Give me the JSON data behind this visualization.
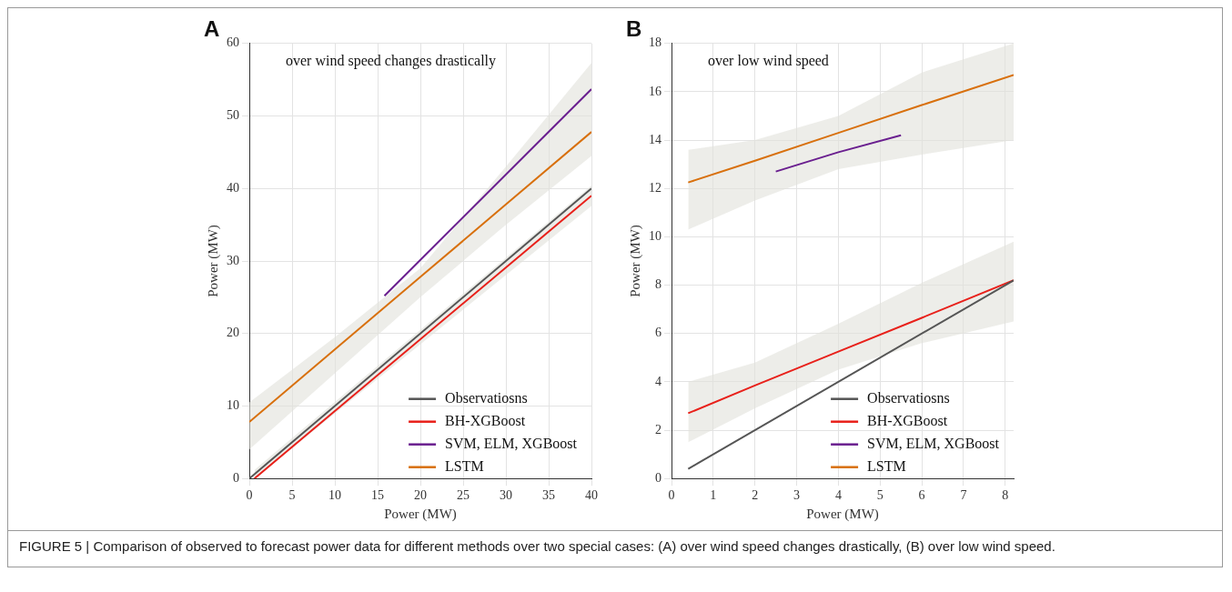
{
  "chart_data": [
    {
      "type": "line",
      "title": "A",
      "xlabel": "Power (MW)",
      "ylabel": "Power (MW)",
      "xlim": [
        0,
        40
      ],
      "ylim": [
        0,
        60
      ],
      "xticks": [
        0,
        5,
        10,
        15,
        20,
        25,
        30,
        35,
        40
      ],
      "yticks": [
        0,
        10,
        20,
        30,
        40,
        50,
        60
      ],
      "grid": true,
      "legend": "bottom right",
      "annotations": [
        "over wind speed changes drastically",
        "FIGURE 5 | Comparison of observed to forecast power data for different methods over two special cases: (A) over wind speed changes drastically, (B) over low wind speed."
      ],
      "series": [
        {
          "name": "Observatiosns",
          "color": "#555555",
          "x": [
            0,
            40
          ],
          "values": [
            0,
            40
          ]
        },
        {
          "name": "BH-XGBoost",
          "color": "#e8201a",
          "x": [
            0.6,
            40
          ],
          "values": [
            0,
            39
          ],
          "lower": [
            0,
            37.6
          ],
          "upper": [
            1.2,
            40.4
          ]
        },
        {
          "name": "SVM, ELM, XGBoost",
          "color": "#6a1f8f",
          "x": [
            15.8,
            40
          ],
          "values": [
            25.2,
            53.7
          ]
        },
        {
          "name": "LSTM",
          "color": "#d8700d",
          "x": [
            0,
            10,
            20,
            30,
            40
          ],
          "values": [
            7.8,
            17.8,
            27.8,
            37.8,
            47.8
          ],
          "lower": [
            4,
            14.5,
            25,
            35,
            44.5
          ],
          "upper": [
            10.5,
            19.5,
            29,
            43,
            57.3
          ]
        }
      ]
    },
    {
      "type": "line",
      "title": "B",
      "xlabel": "Power (MW)",
      "ylabel": "Power (MW)",
      "xlim": [
        0,
        8.2
      ],
      "ylim": [
        0,
        18
      ],
      "xticks": [
        0,
        1,
        2,
        3,
        4,
        5,
        6,
        7,
        8
      ],
      "yticks": [
        0,
        2,
        4,
        6,
        8,
        10,
        12,
        14,
        16,
        18
      ],
      "grid": true,
      "legend": "bottom right",
      "annotations": [
        "over low wind speed"
      ],
      "series": [
        {
          "name": "Observatiosns",
          "color": "#555555",
          "x": [
            0.4,
            8.2
          ],
          "values": [
            0.4,
            8.2
          ]
        },
        {
          "name": "BH-XGBoost",
          "color": "#e8201a",
          "x": [
            0.4,
            2,
            4,
            6,
            8.2
          ],
          "values": [
            2.7,
            3.85,
            5.25,
            6.65,
            8.2
          ],
          "lower": [
            1.5,
            2.9,
            4.5,
            5.6,
            6.5
          ],
          "upper": [
            4,
            4.8,
            6.4,
            8.1,
            9.8
          ]
        },
        {
          "name": "SVM, ELM, XGBoost",
          "color": "#6a1f8f",
          "x": [
            2.5,
            4,
            5.5
          ],
          "values": [
            12.7,
            13.5,
            14.2
          ]
        },
        {
          "name": "LSTM",
          "color": "#d8700d",
          "x": [
            0.4,
            2,
            4,
            6,
            8.2
          ],
          "values": [
            12.25,
            13.15,
            14.3,
            15.45,
            16.7
          ],
          "lower": [
            10.3,
            11.5,
            12.8,
            13.4,
            14
          ],
          "upper": [
            13.6,
            14,
            15,
            16.8,
            18
          ]
        }
      ]
    }
  ]
}
